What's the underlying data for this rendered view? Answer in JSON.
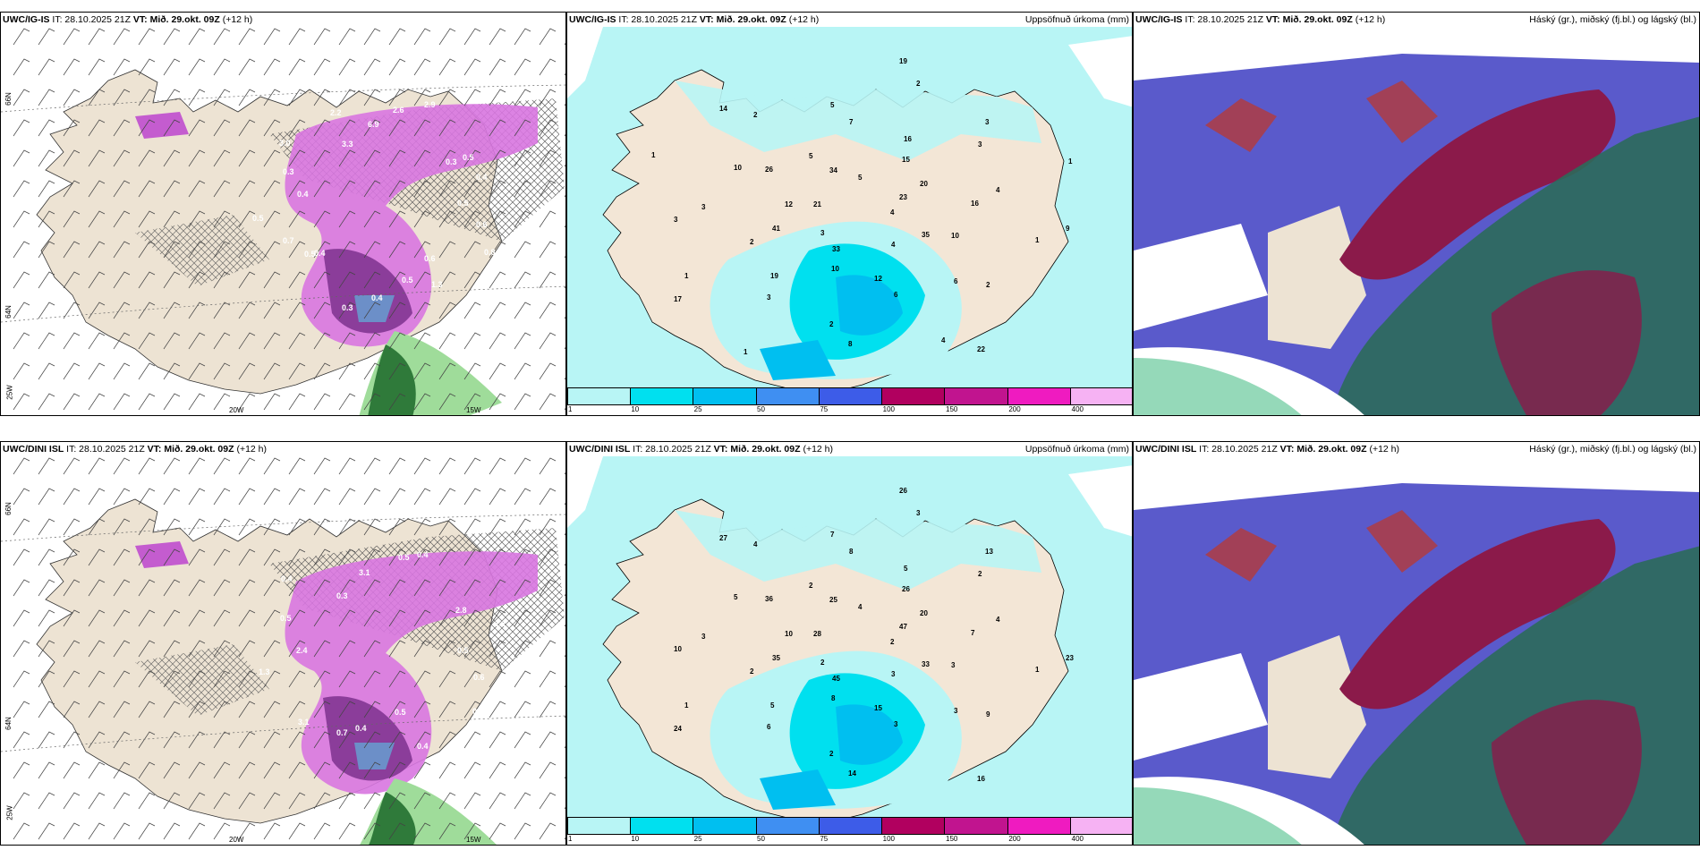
{
  "init_time": "IT: 28.10.2025 21Z",
  "valid_time": "VT: Mið. 29.okt. 09Z",
  "lead": "(+12 h)",
  "models": [
    "UWC/IG-IS",
    "UWC/DINI ISL"
  ],
  "precip_title": "Uppsöfnuð úrkoma (mm)",
  "cloud_title": "Háský (gr.), miðský (fj.bl.) og lágský (bl.)",
  "colorbar": {
    "ticks": [
      "1",
      "10",
      "25",
      "50",
      "75",
      "100",
      "150",
      "200",
      "400"
    ],
    "colors": [
      "#b8f5f5",
      "#00e0ef",
      "#00bff0",
      "#3f8ff2",
      "#3d5ce8",
      "#b1005f",
      "#c1148f",
      "#ef1bc0",
      "#f6b2f3"
    ]
  },
  "axis": {
    "lat66": "66N",
    "lat64": "64N",
    "lon25": "25W",
    "lon20": "20W",
    "lon15": "15W"
  },
  "precip_labels_top": [
    "4",
    "3",
    "5",
    "4",
    "12",
    "20",
    "10",
    "5",
    "10",
    "2",
    "16",
    "6",
    "10",
    "4",
    "3",
    "5",
    "2",
    "3",
    "3",
    "8",
    "14",
    "9",
    "17",
    "19",
    "22",
    "21",
    "23",
    "33",
    "34",
    "35",
    "41",
    "15",
    "12",
    "26",
    "16",
    "19",
    "7",
    "6",
    "3",
    "3",
    "2",
    "2",
    "1",
    "1",
    "2",
    "4",
    "1",
    "1",
    "1"
  ],
  "precip_labels_bottom": [
    "2",
    "2",
    "4",
    "3",
    "10",
    "20",
    "8",
    "2",
    "3",
    "2",
    "5",
    "3",
    "5",
    "4",
    "6",
    "7",
    "9",
    "10",
    "13",
    "14",
    "27",
    "23",
    "24",
    "26",
    "16",
    "28",
    "47",
    "45",
    "25",
    "33",
    "35",
    "26",
    "15",
    "36",
    "7",
    "5",
    "8",
    "3",
    "3",
    "2",
    "2",
    "4",
    "1",
    "1",
    "3"
  ],
  "snow_labels_top": [
    "0.5",
    "0.6",
    "0.8",
    "1.3",
    "0.6",
    "0.5",
    "0.4",
    "0.3",
    "0.5",
    "0.4",
    "0.7",
    "0.5",
    "0.4",
    "0.3",
    "3.0",
    "2.2",
    "3.3",
    "6.9",
    "2.6",
    "2.9",
    "0.5",
    "0.3",
    "0.4"
  ],
  "snow_labels_bottom": [
    "0.5",
    "0.6",
    "0.3",
    "0.4",
    "0.5",
    "0.4",
    "0.7",
    "3.1",
    "1.3",
    "2.4",
    "0.5",
    "0.4",
    "0.3",
    "3.1",
    "0.5",
    "0.4",
    "2.8",
    "1.1"
  ]
}
